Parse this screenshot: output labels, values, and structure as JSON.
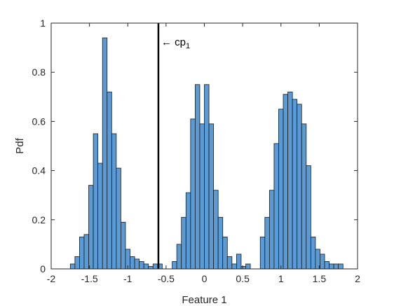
{
  "chart_data": {
    "type": "bar",
    "subtype": "histogram",
    "xlabel": "Feature 1",
    "ylabel": "Pdf",
    "xlim": [
      -2,
      2
    ],
    "ylim": [
      0,
      1
    ],
    "x_ticks": [
      -2,
      -1.5,
      -1,
      -0.5,
      0,
      0.5,
      1,
      1.5,
      2
    ],
    "x_tick_labels": [
      "-2",
      "-1.5",
      "-1",
      "-0.5",
      "0",
      "0.5",
      "1",
      "1.5",
      "2"
    ],
    "y_ticks": [
      0,
      0.2,
      0.4,
      0.6,
      0.8,
      1
    ],
    "y_tick_labels": [
      "0",
      "0.2",
      "0.4",
      "0.6",
      "0.8",
      "1"
    ],
    "grid": false,
    "bin_width": 0.06,
    "bar_color": "#5b9bd5",
    "bar_edge_color": "#1a1a1a",
    "series": [
      {
        "bins_start": [
          -1.75,
          -1.69,
          -1.63,
          -1.57,
          -1.51,
          -1.45,
          -1.39,
          -1.33,
          -1.27,
          -1.21,
          -1.15,
          -1.09,
          -1.03,
          -0.97,
          -0.91,
          -0.85,
          -0.79,
          -0.73,
          -0.67,
          -0.61
        ],
        "values": [
          0.02,
          0.05,
          0.13,
          0.14,
          0.34,
          0.55,
          0.43,
          0.94,
          0.72,
          0.55,
          0.41,
          0.19,
          0.08,
          0.05,
          0.04,
          0.03,
          0.02,
          0.01,
          0.02,
          0.02
        ]
      },
      {
        "bins_start": [
          -0.42,
          -0.36,
          -0.3,
          -0.24,
          -0.18,
          -0.12,
          -0.06,
          0.0,
          0.06,
          0.12,
          0.18,
          0.24,
          0.3,
          0.36,
          0.42,
          0.48,
          0.54,
          0.6
        ],
        "values": [
          0.03,
          0.1,
          0.21,
          0.31,
          0.61,
          0.75,
          0.59,
          0.75,
          0.59,
          0.32,
          0.21,
          0.13,
          0.05,
          0.02,
          0.06,
          0.01,
          0.02,
          0.0
        ]
      },
      {
        "bins_start": [
          0.73,
          0.79,
          0.85,
          0.91,
          0.97,
          1.03,
          1.09,
          1.15,
          1.21,
          1.27,
          1.33,
          1.39,
          1.45,
          1.51,
          1.57,
          1.63,
          1.69,
          1.75
        ],
        "values": [
          0.13,
          0.21,
          0.32,
          0.51,
          0.65,
          0.71,
          0.72,
          0.69,
          0.67,
          0.59,
          0.42,
          0.13,
          0.08,
          0.06,
          0.03,
          0.02,
          0.02,
          0.02
        ]
      }
    ],
    "vertical_line": {
      "x": -0.6,
      "color": "#000000"
    },
    "annotation": {
      "text": "← cp",
      "subscript": "1"
    }
  }
}
